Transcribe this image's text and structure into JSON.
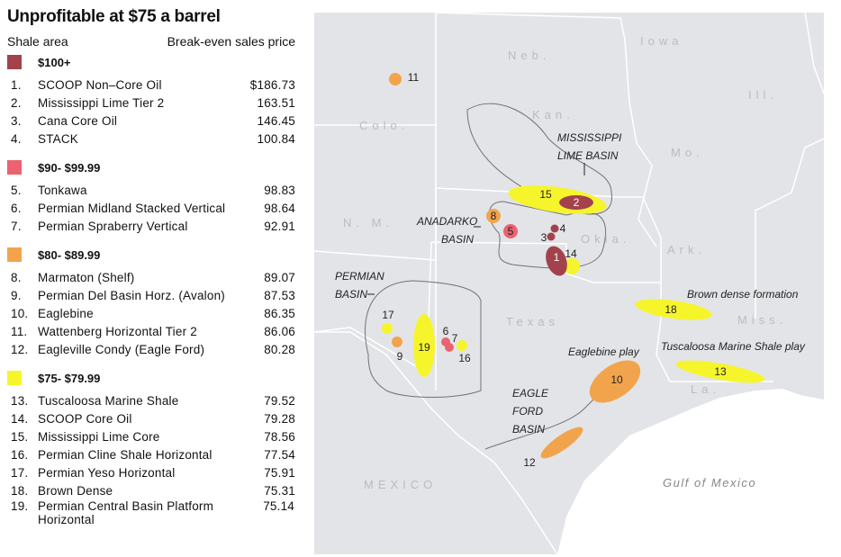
{
  "title": "Unprofitable at $75 a barrel",
  "headers": {
    "area": "Shale area",
    "price": "Break-even sales price"
  },
  "colors": {
    "100plus": "#a3424c",
    "90_99": "#ec6271",
    "80_89": "#f2a44c",
    "75_79": "#f6f52c",
    "land": "#e3e4e7",
    "water": "#ffffff"
  },
  "groups": [
    {
      "label": "$100+",
      "items": [
        {
          "n": "1.",
          "name": "SCOOP Non–Core Oil",
          "price": "$186.73"
        },
        {
          "n": "2.",
          "name": "Mississippi Lime Tier 2",
          "price": "163.51"
        },
        {
          "n": "3.",
          "name": "Cana Core Oil",
          "price": "146.45"
        },
        {
          "n": "4.",
          "name": "STACK",
          "price": "100.84"
        }
      ]
    },
    {
      "label": "$90- $99.99",
      "items": [
        {
          "n": "5.",
          "name": "Tonkawa",
          "price": "98.83"
        },
        {
          "n": "6.",
          "name": "Permian Midland Stacked Vertical",
          "price": "98.64"
        },
        {
          "n": "7.",
          "name": "Permian Spraberry Vertical",
          "price": "92.91"
        }
      ]
    },
    {
      "label": "$80- $89.99",
      "items": [
        {
          "n": "8.",
          "name": "Marmaton (Shelf)",
          "price": "89.07"
        },
        {
          "n": "9.",
          "name": "Permian Del Basin Horz. (Avalon)",
          "price": "87.53"
        },
        {
          "n": "10.",
          "name": "Eaglebine",
          "price": "86.35"
        },
        {
          "n": "11.",
          "name": "Wattenberg Horizontal Tier 2",
          "price": "86.06"
        },
        {
          "n": "12.",
          "name": "Eagleville Condy (Eagle Ford)",
          "price": "80.28"
        }
      ]
    },
    {
      "label": "$75- $79.99",
      "items": [
        {
          "n": "13.",
          "name": "Tuscaloosa Marine Shale",
          "price": "79.52"
        },
        {
          "n": "14.",
          "name": "SCOOP Core Oil",
          "price": "79.28"
        },
        {
          "n": "15.",
          "name": "Mississippi Lime Core",
          "price": "78.56"
        },
        {
          "n": "16.",
          "name": "Permian Cline Shale Horizontal",
          "price": "77.54"
        },
        {
          "n": "17.",
          "name": "Permian Yeso Horizontal",
          "price": "75.91"
        },
        {
          "n": "18.",
          "name": "Brown Dense",
          "price": "75.31"
        },
        {
          "n": "19.",
          "name": "Permian Central Basin Platform Horizontal",
          "price": "75.14"
        }
      ]
    }
  ],
  "map": {
    "states": [
      "Neb.",
      "Iowa",
      "Ill.",
      "Colo.",
      "Kan.",
      "Mo.",
      "N. M.",
      "Okla.",
      "Ark.",
      "Texas",
      "Miss.",
      "La.",
      "MEXICO"
    ],
    "water": "Gulf of Mexico",
    "basins": [
      "MISSISSIPPI",
      "LIME BASIN",
      "ANADARKO",
      "BASIN",
      "PERMIAN",
      "BASIN",
      "EAGLE",
      "FORD",
      "BASIN"
    ],
    "plays": [
      "Brown dense formation",
      "Tuscaloosa Marine Shale play",
      "Eaglebine play"
    ],
    "markers": [
      "1",
      "2",
      "3",
      "4",
      "5",
      "6",
      "7",
      "8",
      "9",
      "10",
      "11",
      "12",
      "13",
      "14",
      "15",
      "16",
      "17",
      "18",
      "19"
    ]
  }
}
